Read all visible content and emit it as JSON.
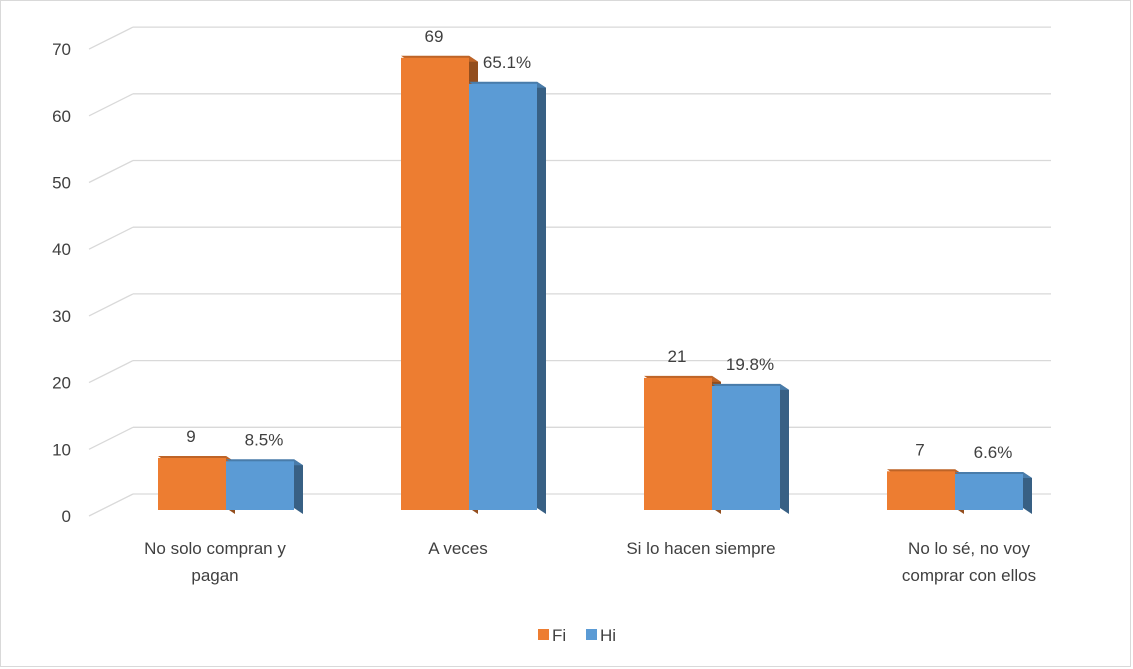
{
  "chart_data": {
    "type": "bar",
    "style": "3d-clustered-column",
    "categories": [
      [
        "No solo compran y",
        "pagan"
      ],
      [
        "A veces"
      ],
      [
        "Si lo hacen siempre"
      ],
      [
        "No lo sé, no voy",
        "comprar con ellos"
      ]
    ],
    "series": [
      {
        "name": "Fi",
        "values": [
          9,
          69,
          21,
          7
        ],
        "labels": [
          "9",
          "69",
          "21",
          "7"
        ],
        "color": "#ED7D31"
      },
      {
        "name": "Hi",
        "values": [
          8.5,
          65.1,
          19.8,
          6.6
        ],
        "labels": [
          "8.5%",
          "65.1%",
          "19.8%",
          "6.6%"
        ],
        "color": "#5B9BD5"
      }
    ],
    "ylim": [
      0,
      70
    ],
    "yticks": [
      "0",
      "10",
      "20",
      "30",
      "40",
      "50",
      "60",
      "70"
    ],
    "grid": true,
    "legend_position": "bottom"
  }
}
